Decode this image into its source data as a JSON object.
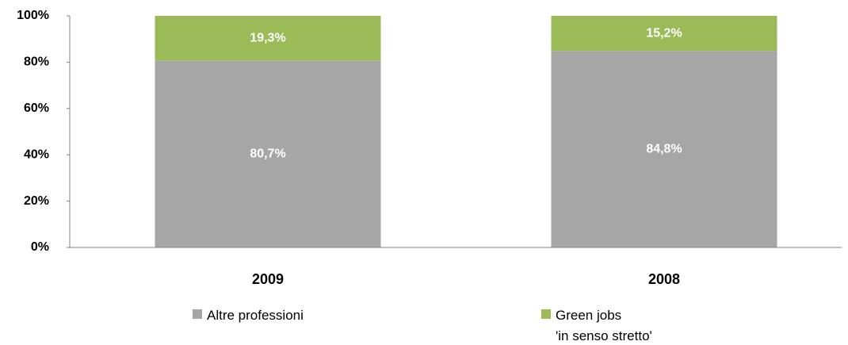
{
  "chart_data": {
    "type": "stacked_bar",
    "categories": [
      "2009",
      "2008"
    ],
    "series": [
      {
        "name": "Altre professioni",
        "color": "#a6a6a6",
        "values": [
          80.7,
          84.8
        ],
        "value_labels": [
          "80,7%",
          "84,8%"
        ]
      },
      {
        "name": "Green jobs\n'in senso stretto'",
        "color": "#9bbb59",
        "values": [
          19.3,
          15.2
        ],
        "value_labels": [
          "19,3%",
          "15,2%"
        ]
      }
    ],
    "ylim": [
      0,
      100
    ],
    "yticks": [
      {
        "value": 0,
        "label": "0%"
      },
      {
        "value": 20,
        "label": "20%"
      },
      {
        "value": 40,
        "label": "40%"
      },
      {
        "value": 60,
        "label": "60%"
      },
      {
        "value": 80,
        "label": "80%"
      },
      {
        "value": 100,
        "label": "100%"
      }
    ],
    "legend": "bottom"
  }
}
